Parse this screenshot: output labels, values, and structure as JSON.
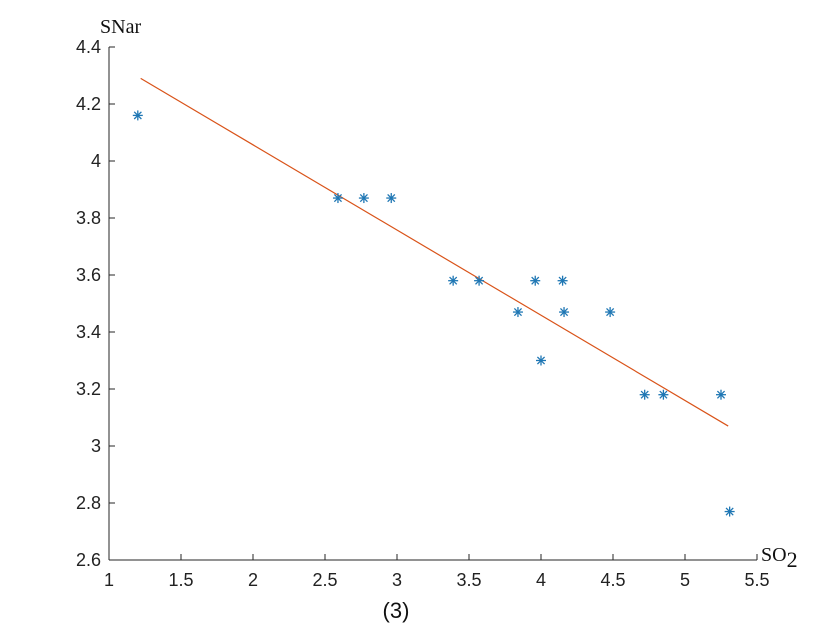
{
  "chart_data": {
    "type": "scatter",
    "xlabel": "SO",
    "xlabel_sub": "2",
    "ylabel": "SNar",
    "caption": "(3)",
    "xlim": [
      1,
      5.5
    ],
    "ylim": [
      2.6,
      4.4
    ],
    "xticks": [
      "1",
      "1.5",
      "2",
      "2.5",
      "3",
      "3.5",
      "4",
      "4.5",
      "5",
      "5.5"
    ],
    "yticks": [
      "2.6",
      "2.8",
      "3",
      "3.2",
      "3.4",
      "3.6",
      "3.8",
      "4",
      "4.2",
      "4.4"
    ],
    "grid": false,
    "marker": "*",
    "colors": {
      "points": "#1f77b4",
      "fit_line": "#d95319",
      "axis": "#262626"
    },
    "points": [
      {
        "x": 1.2,
        "y": 4.16
      },
      {
        "x": 2.59,
        "y": 3.87
      },
      {
        "x": 2.77,
        "y": 3.87
      },
      {
        "x": 2.96,
        "y": 3.87
      },
      {
        "x": 3.39,
        "y": 3.58
      },
      {
        "x": 3.57,
        "y": 3.58
      },
      {
        "x": 3.84,
        "y": 3.47
      },
      {
        "x": 3.96,
        "y": 3.58
      },
      {
        "x": 4.0,
        "y": 3.3
      },
      {
        "x": 4.15,
        "y": 3.58
      },
      {
        "x": 4.16,
        "y": 3.47
      },
      {
        "x": 4.48,
        "y": 3.47
      },
      {
        "x": 4.72,
        "y": 3.18
      },
      {
        "x": 4.85,
        "y": 3.18
      },
      {
        "x": 5.25,
        "y": 3.18
      },
      {
        "x": 5.31,
        "y": 2.77
      }
    ],
    "fit_line": {
      "x": [
        1.22,
        5.3
      ],
      "y": [
        4.29,
        3.07
      ]
    }
  }
}
